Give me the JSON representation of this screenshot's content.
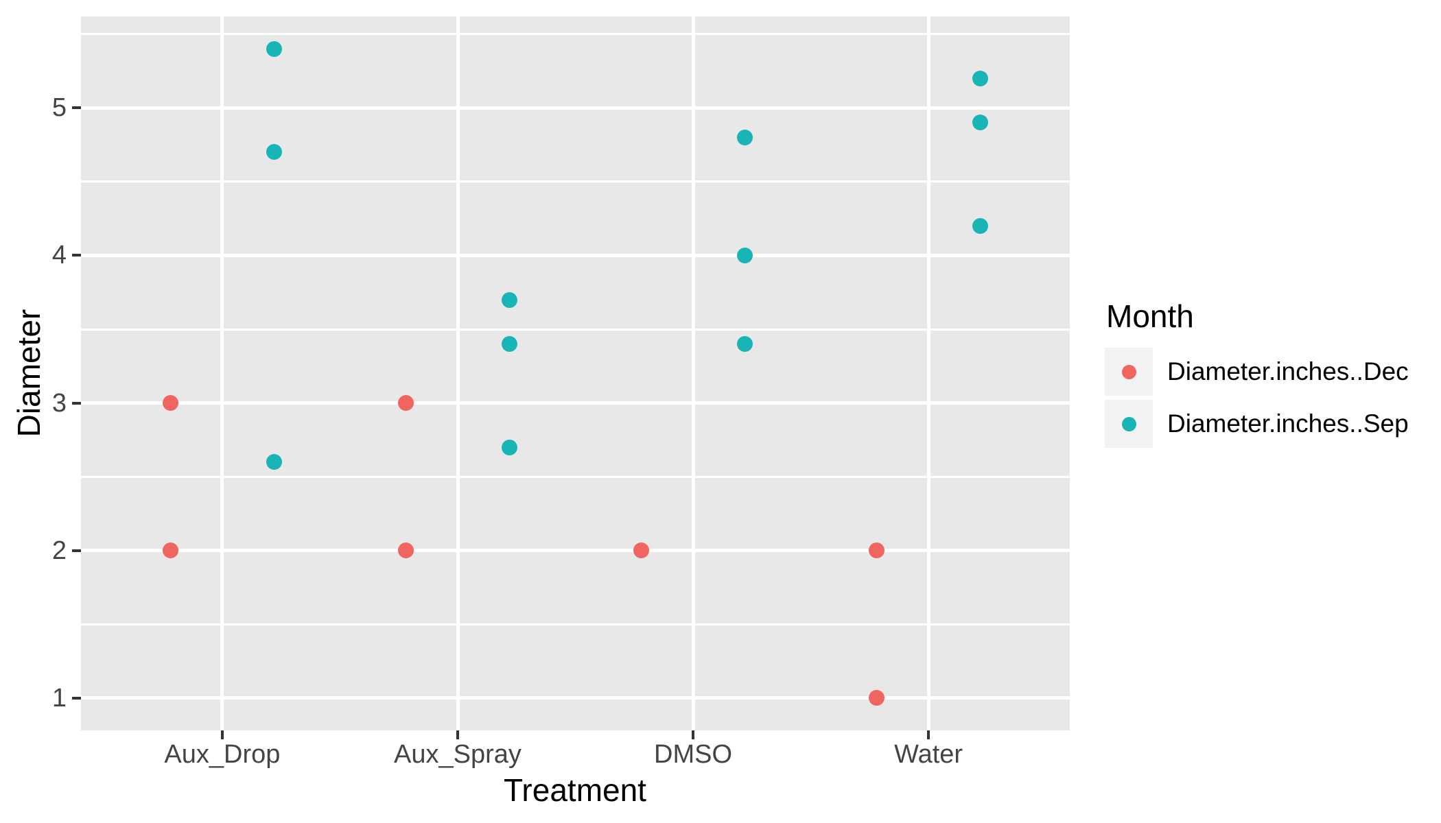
{
  "chart_data": {
    "type": "scatter",
    "title": "",
    "xlabel": "Treatment",
    "ylabel": "Diameter",
    "categories": [
      "Aux_Drop",
      "Aux_Spray",
      "DMSO",
      "Water"
    ],
    "y_ticks": [
      1,
      2,
      3,
      4,
      5
    ],
    "y_minor_ticks": [
      1.5,
      2.5,
      3.5,
      4.5,
      5.5
    ],
    "ylim": [
      0.78,
      5.62
    ],
    "grid": {
      "major": "on",
      "minor": "on"
    },
    "dodge": "grouped points: Dec offset left, Sep offset right of category center",
    "series": [
      {
        "name": "Diameter.inches..Dec",
        "color": "#F0655F",
        "points": [
          {
            "category": "Aux_Drop",
            "y": 3.0
          },
          {
            "category": "Aux_Drop",
            "y": 2.0
          },
          {
            "category": "Aux_Spray",
            "y": 3.0
          },
          {
            "category": "Aux_Spray",
            "y": 2.0
          },
          {
            "category": "DMSO",
            "y": 2.0
          },
          {
            "category": "Water",
            "y": 2.0
          },
          {
            "category": "Water",
            "y": 1.0
          }
        ]
      },
      {
        "name": "Diameter.inches..Sep",
        "color": "#19B4B6",
        "points": [
          {
            "category": "Aux_Drop",
            "y": 5.4
          },
          {
            "category": "Aux_Drop",
            "y": 4.7
          },
          {
            "category": "Aux_Drop",
            "y": 2.6
          },
          {
            "category": "Aux_Spray",
            "y": 3.7
          },
          {
            "category": "Aux_Spray",
            "y": 3.4
          },
          {
            "category": "Aux_Spray",
            "y": 2.7
          },
          {
            "category": "DMSO",
            "y": 4.8
          },
          {
            "category": "DMSO",
            "y": 4.0
          },
          {
            "category": "DMSO",
            "y": 3.4
          },
          {
            "category": "Water",
            "y": 5.2
          },
          {
            "category": "Water",
            "y": 4.9
          },
          {
            "category": "Water",
            "y": 4.2
          }
        ]
      }
    ],
    "legend": {
      "title": "Month",
      "position": "right-center",
      "entries": [
        {
          "label": "Diameter.inches..Dec",
          "color": "#F0655F"
        },
        {
          "label": "Diameter.inches..Sep",
          "color": "#19B4B6"
        }
      ]
    },
    "colors": {
      "panel_background": "#E8E8E8",
      "grid": "#FFFFFF",
      "tick_text": "#444444",
      "title_text": "#000000",
      "legend_key_background": "#F2F2F2",
      "page_background": "#FFFFFF"
    }
  }
}
